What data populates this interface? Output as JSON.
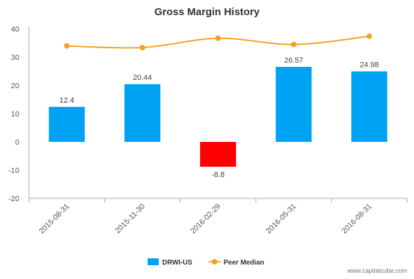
{
  "chart_data": {
    "type": "bar",
    "title": "Gross Margin History",
    "categories": [
      "2015-08-31",
      "2015-11-30",
      "2016-02-29",
      "2016-05-31",
      "2016-08-31"
    ],
    "series": [
      {
        "name": "DRWI-US",
        "type": "bar",
        "values": [
          12.4,
          20.44,
          -8.8,
          26.57,
          24.98
        ],
        "labels": [
          "12.4",
          "20.44",
          "-8.8",
          "26.57",
          "24.98"
        ],
        "color": "#00a2f3",
        "negative_color": "#ff0000"
      },
      {
        "name": "Peer Median",
        "type": "line",
        "values": [
          34.0,
          33.4,
          36.7,
          34.5,
          37.4
        ],
        "color": "#f4a11f"
      }
    ],
    "yticks": [
      "40",
      "30",
      "20",
      "10",
      "0",
      "-10",
      "-20"
    ],
    "ylim": [
      -20,
      40
    ],
    "grid": false,
    "legend_position": "bottom-center"
  },
  "watermark": "www.capitalcube.com"
}
